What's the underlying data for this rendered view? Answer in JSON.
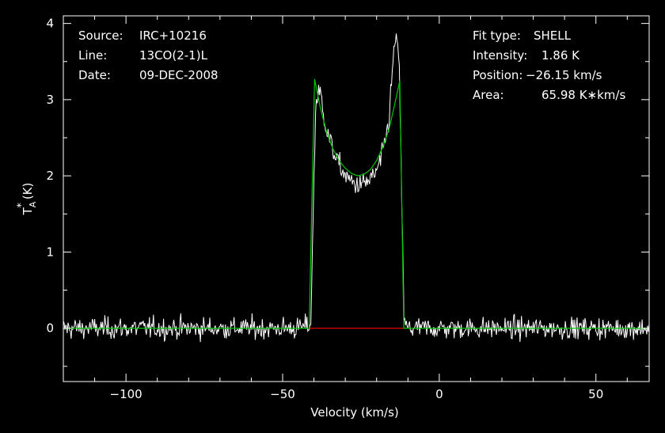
{
  "header": {
    "source_label": "Source:",
    "source_value": "IRC+10216",
    "line_label": "Line:",
    "line_value": "13CO(2-1)L",
    "date_label": "Date:",
    "date_value": "09-DEC-2008"
  },
  "fit": {
    "type_label": "Fit type:",
    "type_value": "SHELL",
    "intensity_label": "Intensity:",
    "intensity_value": "1.86 K",
    "position_label": "Position:",
    "position_value": "−26.15 km/s",
    "area_label": "Area:",
    "area_value": "65.98 K∗km/s"
  },
  "chart_data": {
    "type": "line",
    "xlabel": "Velocity (km/s)",
    "ylabel_main": "T",
    "ylabel_sub": "A",
    "ylabel_sup": "*",
    "ylabel_unit": "(K)",
    "xlim": [
      -120,
      67
    ],
    "ylim": [
      -0.7,
      4.1
    ],
    "x_ticks": [
      -100,
      -50,
      0,
      50
    ],
    "x_tick_labels": [
      "−100",
      "−50",
      "0",
      "50"
    ],
    "y_ticks": [
      0,
      1,
      2,
      3,
      4
    ],
    "y_tick_labels": [
      "0",
      "1",
      "2",
      "3",
      "4"
    ],
    "grid": false,
    "colors": {
      "background": "#000000",
      "frame": "#ffffff",
      "observed": "#ffffff",
      "fit": "#00c800",
      "fit_window": "#e00000"
    },
    "series": [
      {
        "kind": "observed",
        "x": [
          -120,
          -110,
          -100,
          -90,
          -80,
          -70,
          -60,
          -50,
          -45,
          -41,
          -40.2,
          -39.4,
          -38,
          -36,
          -34,
          -32,
          -30,
          -28,
          -26,
          -24,
          -22,
          -20,
          -18,
          -16,
          -14.6,
          -13.8,
          -12.8,
          -12,
          -11.2,
          -10,
          0,
          10,
          20,
          30,
          40,
          50,
          60,
          67
        ],
        "y": [
          0,
          0,
          0,
          0,
          0,
          0,
          0,
          0,
          0,
          0.05,
          1.6,
          3.0,
          3.1,
          2.6,
          2.35,
          2.15,
          2.0,
          1.92,
          1.88,
          1.9,
          1.95,
          2.05,
          2.3,
          2.75,
          3.6,
          3.85,
          3.45,
          1.8,
          0.05,
          0,
          0,
          0,
          0,
          0,
          0,
          0,
          0,
          0
        ]
      },
      {
        "kind": "fit",
        "x": [
          -120,
          -41.5,
          -40.8,
          -39.8,
          -38,
          -36,
          -34,
          -32,
          -30,
          -28,
          -26,
          -24,
          -22,
          -20,
          -18,
          -16,
          -14,
          -12.6,
          -11.3,
          67
        ],
        "y": [
          0,
          0,
          1.4,
          3.27,
          2.9,
          2.58,
          2.36,
          2.2,
          2.1,
          2.03,
          2.0,
          2.02,
          2.08,
          2.2,
          2.38,
          2.62,
          2.98,
          3.25,
          0,
          0
        ]
      },
      {
        "kind": "fit_window",
        "x": [
          -41.5,
          -11.3
        ],
        "y": [
          0,
          0
        ]
      }
    ]
  }
}
